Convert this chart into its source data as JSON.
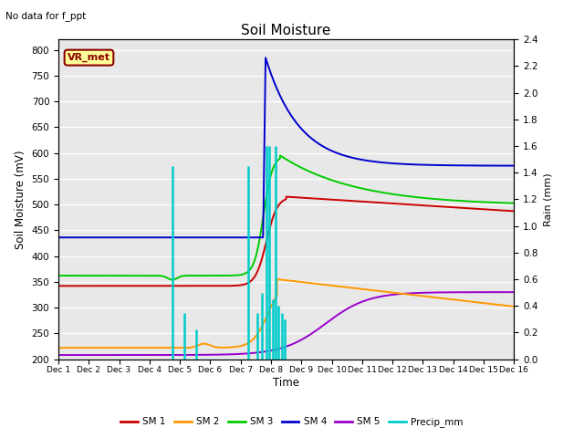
{
  "title": "Soil Moisture",
  "subtitle": "No data for f_ppt",
  "xlabel": "Time",
  "ylabel_left": "Soil Moisture (mV)",
  "ylabel_right": "Rain (mm)",
  "ylim_left": [
    200,
    820
  ],
  "ylim_right": [
    0.0,
    2.4
  ],
  "yticks_left": [
    200,
    250,
    300,
    350,
    400,
    450,
    500,
    550,
    600,
    650,
    700,
    750,
    800
  ],
  "yticks_right": [
    0.0,
    0.2,
    0.4,
    0.6,
    0.8,
    1.0,
    1.2,
    1.4,
    1.6,
    1.8,
    2.0,
    2.2,
    2.4
  ],
  "xtick_labels": [
    "Dec 1",
    "Dec 2",
    "Dec 3",
    "Dec 4",
    "Dec 5",
    "Dec 6",
    "Dec 7",
    "Dec 8",
    "Dec 9",
    "Dec 10",
    "Dec 11",
    "Dec 12",
    "Dec 13",
    "Dec 14",
    "Dec 15",
    "Dec 16"
  ],
  "legend_label": "VR_met",
  "colors": {
    "SM1": "#cc0000",
    "SM2": "#ff9900",
    "SM3": "#00cc00",
    "SM4": "#0000cc",
    "SM5": "#9900cc",
    "Precip": "#00cccc",
    "bg": "#e8e8e8"
  },
  "precip_times": [
    3.75,
    4.15,
    4.55,
    6.25,
    6.55,
    6.7,
    6.85,
    6.95,
    7.05,
    7.15,
    7.25,
    7.35,
    7.45
  ],
  "precip_vals": [
    1.45,
    0.35,
    0.22,
    1.45,
    0.35,
    0.5,
    1.6,
    1.6,
    0.45,
    1.6,
    0.4,
    0.35,
    0.3
  ]
}
